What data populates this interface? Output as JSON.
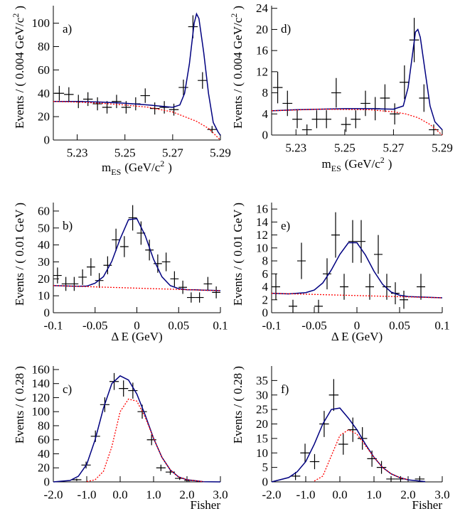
{
  "chart_data": [
    {
      "type": "errorbar",
      "panel_label": "a)",
      "xlabel": [
        {
          "text": "m"
        },
        {
          "text": "ES",
          "shift": "sub"
        },
        {
          "text": "(GeV/c"
        },
        {
          "text": "2",
          "shift": "sup"
        },
        {
          "text": ")"
        }
      ],
      "ylabel": [
        {
          "text": "Events / ( 0.004 GeV/c"
        },
        {
          "text": "2",
          "shift": "sup"
        },
        {
          "text": ")"
        }
      ],
      "xlim": [
        5.22,
        5.29
      ],
      "ylim": [
        0,
        115
      ],
      "xticks": [
        5.23,
        5.25,
        5.27,
        5.29
      ],
      "yticks": [
        0,
        20,
        40,
        60,
        80,
        100
      ],
      "series": [
        {
          "style": "points",
          "color": "#000000",
          "bin_width": 0.004,
          "x": [
            5.2225,
            5.2265,
            5.2305,
            5.2345,
            5.2385,
            5.2425,
            5.2465,
            5.2505,
            5.2545,
            5.2585,
            5.2625,
            5.2665,
            5.2705,
            5.2745,
            5.2785,
            5.2825,
            5.2865
          ],
          "values": [
            40,
            39,
            33,
            35,
            31,
            28,
            33,
            28,
            31,
            38,
            27,
            28,
            26,
            45,
            97,
            51,
            9
          ],
          "errors": [
            6.3,
            6.2,
            5.7,
            5.9,
            5.6,
            5.3,
            5.7,
            5.3,
            5.6,
            6.2,
            5.2,
            5.3,
            5.1,
            6.7,
            9.8,
            7.1,
            3
          ]
        },
        {
          "style": "solid",
          "color": "#000080",
          "x": [
            5.22,
            5.23,
            5.24,
            5.25,
            5.26,
            5.265,
            5.27,
            5.273,
            5.275,
            5.277,
            5.279,
            5.28,
            5.281,
            5.283,
            5.285,
            5.287,
            5.289,
            5.29
          ],
          "values": [
            33,
            33,
            32.5,
            31.5,
            30,
            29,
            28,
            30,
            40,
            65,
            100,
            108,
            104,
            75,
            40,
            15,
            7,
            4
          ]
        },
        {
          "style": "dotted",
          "color": "#ff0000",
          "x": [
            5.22,
            5.23,
            5.24,
            5.25,
            5.26,
            5.27,
            5.275,
            5.28,
            5.285,
            5.29
          ],
          "values": [
            33,
            32.5,
            31.5,
            30,
            28,
            24,
            20,
            16,
            10,
            0
          ]
        }
      ]
    },
    {
      "type": "errorbar",
      "panel_label": "b)",
      "xlabel": [
        {
          "text": "Δ E (GeV)"
        }
      ],
      "ylabel": [
        {
          "text": "Events / ( 0.01 GeV )"
        }
      ],
      "xlim": [
        -0.1,
        0.1
      ],
      "ylim": [
        0,
        65
      ],
      "xticks": [
        -0.1,
        -0.05,
        0,
        0.05,
        0.1
      ],
      "yticks": [
        0,
        10,
        20,
        30,
        40,
        50,
        60
      ],
      "series": [
        {
          "style": "points",
          "color": "#000000",
          "bin_width": 0.01,
          "x": [
            -0.095,
            -0.085,
            -0.075,
            -0.065,
            -0.055,
            -0.045,
            -0.035,
            -0.025,
            -0.015,
            -0.005,
            0.005,
            0.015,
            0.025,
            0.035,
            0.045,
            0.055,
            0.065,
            0.075,
            0.085,
            0.095
          ],
          "values": [
            22,
            17,
            17,
            21,
            27,
            19,
            28,
            43,
            39,
            56,
            47,
            37,
            29,
            30,
            20,
            15,
            9,
            9,
            17,
            12
          ],
          "errors": [
            4.7,
            4.1,
            4.1,
            4.6,
            5.2,
            4.4,
            5.3,
            6.6,
            6.2,
            7.5,
            6.9,
            6.1,
            5.4,
            5.5,
            4.5,
            3.9,
            3,
            3,
            4.1,
            3.5
          ]
        },
        {
          "style": "solid",
          "color": "#000080",
          "x": [
            -0.1,
            -0.09,
            -0.08,
            -0.07,
            -0.06,
            -0.05,
            -0.04,
            -0.03,
            -0.02,
            -0.01,
            0,
            0.01,
            0.02,
            0.03,
            0.04,
            0.05,
            0.06,
            0.07,
            0.08,
            0.09,
            0.1
          ],
          "values": [
            16,
            15.9,
            15.7,
            15.6,
            15.7,
            17.4,
            21.3,
            30.3,
            43.6,
            54.9,
            55.5,
            45.5,
            31.5,
            21.2,
            16,
            14.2,
            13.6,
            13.5,
            13.3,
            13.2,
            13
          ]
        },
        {
          "style": "dotted",
          "color": "#ff0000",
          "x": [
            -0.1,
            -0.05,
            0,
            0.05,
            0.1
          ],
          "values": [
            16,
            15.25,
            14.5,
            13.75,
            13
          ]
        }
      ]
    },
    {
      "type": "errorbar",
      "panel_label": "c)",
      "xlabel": [
        {
          "text": "Fisher"
        }
      ],
      "xlabel_align": "right",
      "ylabel": [
        {
          "text": "Events / ( 0.28 )"
        }
      ],
      "xlim": [
        -2,
        3
      ],
      "ylim": [
        0,
        165
      ],
      "xticks": [
        {
          "value": -2,
          "label": "-2.0"
        },
        {
          "value": -1,
          "label": "-1.0"
        },
        {
          "value": 0,
          "label": "0.0"
        },
        {
          "value": 1,
          "label": "1.0"
        },
        {
          "value": 2,
          "label": "2.0"
        },
        {
          "value": 3,
          "label": "3.0"
        }
      ],
      "yticks": [
        0,
        20,
        40,
        60,
        80,
        100,
        120,
        140,
        160
      ],
      "series": [
        {
          "style": "points",
          "color": "#000000",
          "bin_width": 0.28,
          "x": [
            -1.3,
            -1.02,
            -0.74,
            -0.46,
            -0.18,
            0.1,
            0.38,
            0.66,
            0.94,
            1.22,
            1.5,
            1.78,
            2.06
          ],
          "values": [
            3,
            24,
            65,
            110,
            143,
            133,
            130,
            100,
            60,
            20,
            14,
            5,
            2
          ],
          "errors": [
            1.7,
            4.9,
            8.1,
            10.5,
            12,
            11.5,
            11.4,
            10,
            7.7,
            4.5,
            3.7,
            2.2,
            1.4
          ]
        },
        {
          "style": "solid",
          "color": "#000080",
          "x": [
            -2,
            -1.5,
            -1.25,
            -1,
            -0.75,
            -0.5,
            -0.25,
            0,
            0.25,
            0.5,
            0.75,
            1,
            1.25,
            1.5,
            1.75,
            2,
            2.5,
            3
          ],
          "values": [
            0,
            2,
            8,
            25,
            60,
            105,
            140,
            151,
            145,
            125,
            95,
            62,
            35,
            17,
            7,
            3,
            0.3,
            0
          ]
        },
        {
          "style": "dotted",
          "color": "#ff0000",
          "x": [
            -1,
            -0.75,
            -0.5,
            -0.25,
            0,
            0.25,
            0.5,
            0.75,
            1,
            1.25,
            1.5,
            1.75,
            2,
            2.5
          ],
          "values": [
            0.5,
            3,
            15,
            50,
            100,
            118,
            115,
            92,
            62,
            35,
            17,
            7,
            3,
            0.3
          ]
        }
      ]
    },
    {
      "type": "errorbar",
      "panel_label": "d)",
      "xlabel": [
        {
          "text": "m"
        },
        {
          "text": "ES",
          "shift": "sub"
        },
        {
          "text": "(GeV/c"
        },
        {
          "text": "2",
          "shift": "sup"
        },
        {
          "text": ")"
        }
      ],
      "ylabel": [
        {
          "text": "Events / ( 0.004 GeV/c"
        },
        {
          "text": "2",
          "shift": "sup"
        },
        {
          "text": ")"
        }
      ],
      "xlim": [
        5.22,
        5.29
      ],
      "ylim": [
        0,
        24.5
      ],
      "xticks": [
        5.23,
        5.25,
        5.27,
        5.29
      ],
      "yticks": [
        0,
        4,
        8,
        12,
        16,
        20,
        24
      ],
      "series": [
        {
          "style": "points",
          "color": "#000000",
          "bin_width": 0.004,
          "x": [
            5.2225,
            5.2265,
            5.2305,
            5.2345,
            5.2385,
            5.2425,
            5.2465,
            5.2505,
            5.2545,
            5.2585,
            5.2625,
            5.2665,
            5.2705,
            5.2745,
            5.2785,
            5.2825,
            5.2865
          ],
          "values": [
            9,
            6,
            3,
            1,
            3,
            3,
            8,
            2,
            3,
            6,
            5,
            7,
            4,
            10,
            18,
            7,
            1
          ],
          "errors": [
            3,
            2.4,
            1.7,
            1,
            1.7,
            1.7,
            2.8,
            1.4,
            1.7,
            2.4,
            2.2,
            2.6,
            2,
            3.2,
            4.2,
            2.6,
            1
          ]
        },
        {
          "style": "solid",
          "color": "#000080",
          "x": [
            5.22,
            5.23,
            5.24,
            5.25,
            5.26,
            5.27,
            5.274,
            5.276,
            5.278,
            5.279,
            5.28,
            5.281,
            5.283,
            5.285,
            5.287,
            5.29
          ],
          "values": [
            4.6,
            4.8,
            4.9,
            5,
            5,
            4.9,
            5.5,
            9,
            16,
            19.5,
            20,
            18.5,
            12,
            5.5,
            2.5,
            1
          ]
        },
        {
          "style": "dotted",
          "color": "#ff0000",
          "x": [
            5.22,
            5.24,
            5.26,
            5.27,
            5.275,
            5.28,
            5.285,
            5.29
          ],
          "values": [
            4.6,
            4.9,
            4.8,
            4.4,
            4,
            3.3,
            2,
            0
          ]
        }
      ]
    },
    {
      "type": "errorbar",
      "panel_label": "e)",
      "xlabel": [
        {
          "text": "Δ E (GeV)"
        }
      ],
      "ylabel": [
        {
          "text": "Events / ( 0.01 GeV )"
        }
      ],
      "xlim": [
        -0.1,
        0.1
      ],
      "ylim": [
        0,
        17
      ],
      "xticks": [
        -0.1,
        -0.05,
        0,
        0.05,
        0.1
      ],
      "yticks": [
        0,
        2,
        4,
        6,
        8,
        10,
        12,
        14,
        16
      ],
      "series": [
        {
          "style": "points",
          "color": "#000000",
          "bin_width": 0.01,
          "x": [
            -0.095,
            -0.075,
            -0.065,
            -0.045,
            -0.035,
            -0.025,
            -0.015,
            -0.005,
            0.005,
            0.015,
            0.025,
            0.035,
            0.045,
            0.055,
            0.075
          ],
          "values": [
            4,
            1,
            8,
            1,
            6,
            12,
            4,
            11,
            11,
            4,
            9,
            4,
            3,
            2,
            4
          ],
          "errors": [
            2,
            1,
            2.8,
            1,
            2.4,
            3.5,
            2,
            3.3,
            3.3,
            2,
            3,
            2,
            1.7,
            1.4,
            2
          ]
        },
        {
          "style": "solid",
          "color": "#000080",
          "x": [
            -0.1,
            -0.08,
            -0.06,
            -0.05,
            -0.04,
            -0.03,
            -0.02,
            -0.01,
            0,
            0.01,
            0.02,
            0.03,
            0.04,
            0.05,
            0.06,
            0.08,
            0.1
          ],
          "values": [
            3,
            2.9,
            3.1,
            3.5,
            4.6,
            6.6,
            9,
            10.8,
            10.8,
            8.9,
            6.4,
            4.4,
            3.2,
            2.7,
            2.5,
            2.4,
            2.3
          ]
        },
        {
          "style": "dotted",
          "color": "#ff0000",
          "x": [
            -0.1,
            0.1
          ],
          "values": [
            3,
            2.3
          ]
        }
      ]
    },
    {
      "type": "errorbar",
      "panel_label": "f)",
      "xlabel": [
        {
          "text": "Fisher"
        }
      ],
      "xlabel_align": "right",
      "ylabel": [
        {
          "text": "Events / ( 0.28 )"
        }
      ],
      "xlim": [
        -2,
        3
      ],
      "ylim": [
        0,
        40
      ],
      "xticks": [
        {
          "value": -2,
          "label": "-2.0"
        },
        {
          "value": -1,
          "label": "-1.0"
        },
        {
          "value": 0,
          "label": "0.0"
        },
        {
          "value": 1,
          "label": "1.0"
        },
        {
          "value": 2,
          "label": "2.0"
        },
        {
          "value": 3,
          "label": "3.0"
        }
      ],
      "yticks": [
        0,
        5,
        10,
        15,
        20,
        25,
        30,
        35
      ],
      "series": [
        {
          "style": "points",
          "color": "#000000",
          "bin_width": 0.28,
          "x": [
            -1.3,
            -1.02,
            -0.74,
            -0.46,
            -0.18,
            0.1,
            0.38,
            0.66,
            0.94,
            1.22,
            1.5,
            1.78,
            2.34
          ],
          "values": [
            2,
            10,
            7,
            20,
            30,
            13,
            18,
            15,
            8,
            5,
            1,
            1,
            1
          ],
          "errors": [
            1.4,
            3.2,
            2.6,
            4.5,
            5.5,
            3.6,
            4.2,
            3.9,
            2.8,
            2.2,
            1,
            1,
            1
          ]
        },
        {
          "style": "solid",
          "color": "#000080",
          "x": [
            -2,
            -1.5,
            -1.25,
            -1,
            -0.75,
            -0.5,
            -0.25,
            0,
            0.25,
            0.5,
            0.75,
            1,
            1.25,
            1.5,
            1.75,
            2,
            2.5
          ],
          "values": [
            0,
            1.5,
            3.5,
            7,
            13,
            20,
            25,
            25.5,
            22,
            18,
            13,
            8.5,
            5,
            2.8,
            1.5,
            0.7,
            0.1
          ]
        },
        {
          "style": "dotted",
          "color": "#ff0000",
          "x": [
            -0.75,
            -0.5,
            -0.25,
            0,
            0.25,
            0.5,
            0.75,
            1,
            1.25,
            1.5,
            1.75,
            2
          ],
          "values": [
            0.3,
            2,
            9,
            16,
            18,
            16.5,
            12.5,
            8.5,
            5,
            2.8,
            1.5,
            0.7
          ]
        }
      ]
    }
  ]
}
